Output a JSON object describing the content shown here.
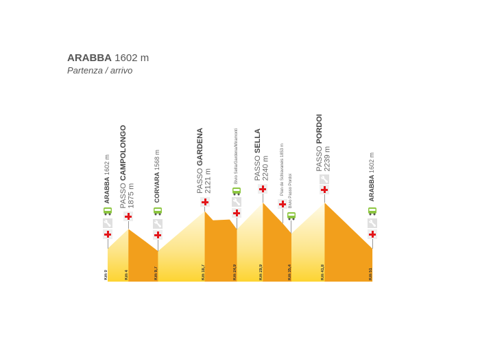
{
  "header": {
    "town": "ARABBA",
    "elevation": "1602 m",
    "subtitle": "Partenza / arrivo"
  },
  "colors": {
    "descent": "#f29f1c",
    "ascent_top": "#fffbe8",
    "ascent_bottom": "#fdd431",
    "first_aid": "#e3161b",
    "service": "#1f4fa0",
    "bus": "#8cc63f"
  },
  "profile": {
    "unit_distance": "km",
    "unit_elevation": "m",
    "points": [
      [
        0,
        1602
      ],
      [
        4,
        1875
      ],
      [
        7.3,
        1700
      ],
      [
        9.7,
        1568
      ],
      [
        18.7,
        2121
      ],
      [
        20.3,
        1995
      ],
      [
        23.5,
        2005
      ],
      [
        24.9,
        1869
      ],
      [
        29.9,
        2240
      ],
      [
        33.7,
        1953
      ],
      [
        35.4,
        1812
      ],
      [
        41.8,
        2239
      ],
      [
        51,
        1602
      ]
    ]
  },
  "waypoints": [
    {
      "prefix": "",
      "name": "ARABBA",
      "elev": "1602 m",
      "km_label": "Km 0",
      "icons": [
        "first-aid",
        "service",
        "bus"
      ]
    },
    {
      "prefix": "PASSO ",
      "name": "CAMPOLONGO",
      "elev": "1875 m",
      "km_label": "Km 4",
      "icons": [
        "first-aid"
      ]
    },
    {
      "prefix": "",
      "name": "CORVARA",
      "elev": "1568 m",
      "km_label": "Km 9,7",
      "icons": [
        "first-aid",
        "service",
        "bus"
      ]
    },
    {
      "prefix": "PASSO ",
      "name": "GARDENA",
      "elev": "2121 m",
      "km_label": "Km 18,7",
      "icons": [
        "first-aid"
      ]
    },
    {
      "prefix": "",
      "name": "Bivio Sella/Gardena/Miramonti",
      "elev": "",
      "km_label": "Km 24,9",
      "icons": [
        "first-aid",
        "service",
        "bus"
      ]
    },
    {
      "prefix": "PASSO ",
      "name": "SELLA",
      "elev": "2240 m",
      "km_label": "Km 29,9",
      "icons": [
        "first-aid"
      ]
    },
    {
      "prefix": "",
      "name": "Pian de Schiavaneis 1853 m",
      "elev": "",
      "km_label": "",
      "icons": [
        "first-aid"
      ]
    },
    {
      "prefix": "",
      "name": "Bivio Passo Pordoi",
      "elev": "",
      "km_label": "Km 35,4",
      "icons": [
        "bus"
      ]
    },
    {
      "prefix": "PASSO ",
      "name": "PORDOI",
      "elev": "2239 m",
      "km_label": "Km 41,8",
      "icons": [
        "first-aid",
        "service"
      ]
    },
    {
      "prefix": "",
      "name": "ARABBA",
      "elev": "1602 m",
      "km_label": "Km 51",
      "icons": [
        "first-aid",
        "service",
        "bus"
      ]
    }
  ]
}
